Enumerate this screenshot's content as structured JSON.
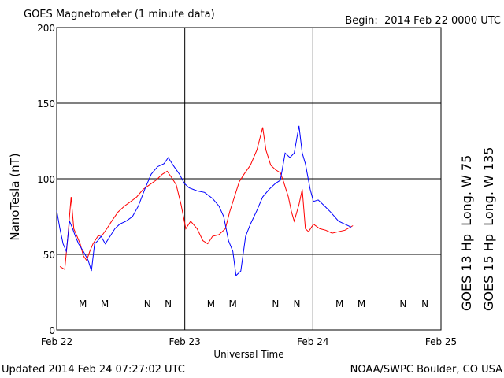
{
  "chart_data": {
    "type": "line",
    "title": "GOES Magnetometer (1 minute data)",
    "subtitle": "Begin:  2014 Feb 22 0000 UTC",
    "y_label": "NanoTesla (nT)",
    "x_label": "Universal Time",
    "footer_left": "Updated 2014 Feb 24 07:27:02 UTC",
    "footer_right": "NOAA/SWPC Boulder, CO USA",
    "xlim": [
      0,
      72
    ],
    "xticks": [
      {
        "value": 0,
        "label": "Feb 22"
      },
      {
        "value": 24,
        "label": "Feb 23"
      },
      {
        "value": 48,
        "label": "Feb 24"
      },
      {
        "value": 72,
        "label": "Feb 25"
      }
    ],
    "ylim": [
      0,
      200
    ],
    "yticks": [
      0,
      50,
      100,
      150,
      200
    ],
    "grid": true,
    "series": [
      {
        "name": "GOES 13 Hp  Long. W 75",
        "color": "#ff0000",
        "x": [
          0.6,
          1.5,
          2.1,
          2.7,
          3.2,
          3.8,
          4.4,
          5.0,
          5.6,
          6.2,
          6.8,
          7.7,
          8.6,
          9.4,
          10.3,
          11.5,
          12.7,
          13.9,
          15.0,
          16.2,
          17.4,
          18.6,
          19.8,
          20.7,
          21.5,
          22.4,
          23.3,
          24.2,
          25.1,
          26.3,
          27.4,
          28.3,
          29.2,
          30.4,
          31.6,
          32.4,
          33.3,
          34.2,
          35.1,
          36.3,
          37.5,
          38.6,
          39.2,
          40.1,
          41.0,
          41.9,
          42.5,
          43.4,
          44.0,
          44.5,
          45.4,
          46.0,
          46.6,
          47.2,
          48.1,
          49.3,
          50.4,
          51.6,
          52.8,
          54.0,
          55.5
        ],
        "values": [
          42,
          40,
          62,
          88,
          67,
          62,
          57,
          49,
          46,
          52,
          57,
          62,
          63,
          67,
          72,
          78,
          82,
          85,
          88,
          93,
          96,
          99,
          103,
          105,
          101,
          96,
          83,
          67,
          72,
          67,
          59,
          57,
          62,
          63,
          67,
          78,
          88,
          98,
          103,
          109,
          119,
          134,
          119,
          109,
          106,
          104,
          98,
          88,
          78,
          72,
          83,
          93,
          67,
          65,
          70,
          67,
          66,
          64,
          65,
          66,
          69
        ]
      },
      {
        "name": "GOES 15 Hp  Long. W 135",
        "color": "#0000ff",
        "x": [
          0,
          0.6,
          1.2,
          1.8,
          2.4,
          3.0,
          3.5,
          4.1,
          5.0,
          5.9,
          6.5,
          7.1,
          7.7,
          8.3,
          9.1,
          10.0,
          10.9,
          11.8,
          13.0,
          14.2,
          15.3,
          16.5,
          17.7,
          18.9,
          20.1,
          20.9,
          21.8,
          23.0,
          23.9,
          24.8,
          26.3,
          27.7,
          29.2,
          30.4,
          31.3,
          32.2,
          33.0,
          33.6,
          34.5,
          35.4,
          36.3,
          37.5,
          38.6,
          39.8,
          41.0,
          41.9,
          42.8,
          43.7,
          44.5,
          45.4,
          46.0,
          46.6,
          47.5,
          48.1,
          49.0,
          50.2,
          51.3,
          52.8,
          55.2
        ],
        "values": [
          79,
          67,
          57,
          52,
          72,
          67,
          62,
          57,
          52,
          46,
          39,
          57,
          59,
          62,
          57,
          62,
          67,
          70,
          72,
          75,
          82,
          93,
          103,
          108,
          110,
          114,
          109,
          103,
          97,
          94,
          92,
          91,
          87,
          82,
          75,
          59,
          52,
          36,
          39,
          62,
          70,
          79,
          88,
          93,
          97,
          99,
          117,
          114,
          117,
          135,
          117,
          110,
          93,
          85,
          86,
          82,
          78,
          72,
          68
        ]
      }
    ],
    "markers": [
      {
        "label": "M",
        "x": 4.9,
        "color": "#ff0000"
      },
      {
        "label": "M",
        "x": 9.0,
        "color": "#0000ff"
      },
      {
        "label": "N",
        "x": 17.0,
        "color": "#ff0000"
      },
      {
        "label": "N",
        "x": 20.9,
        "color": "#0000ff"
      },
      {
        "label": "M",
        "x": 28.9,
        "color": "#ff0000"
      },
      {
        "label": "M",
        "x": 33.0,
        "color": "#0000ff"
      },
      {
        "label": "N",
        "x": 41.0,
        "color": "#ff0000"
      },
      {
        "label": "N",
        "x": 45.0,
        "color": "#0000ff"
      },
      {
        "label": "M",
        "x": 53.0,
        "color": "#ff0000"
      },
      {
        "label": "M",
        "x": 57.1,
        "color": "#0000ff"
      },
      {
        "label": "N",
        "x": 64.9,
        "color": "#ff0000"
      },
      {
        "label": "N",
        "x": 69.0,
        "color": "#0000ff"
      }
    ]
  }
}
